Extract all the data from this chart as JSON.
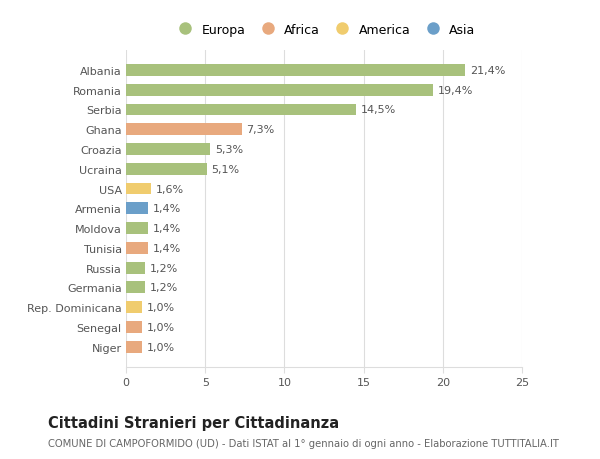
{
  "countries": [
    "Albania",
    "Romania",
    "Serbia",
    "Ghana",
    "Croazia",
    "Ucraina",
    "USA",
    "Armenia",
    "Moldova",
    "Tunisia",
    "Russia",
    "Germania",
    "Rep. Dominicana",
    "Senegal",
    "Niger"
  ],
  "values": [
    21.4,
    19.4,
    14.5,
    7.3,
    5.3,
    5.1,
    1.6,
    1.4,
    1.4,
    1.4,
    1.2,
    1.2,
    1.0,
    1.0,
    1.0
  ],
  "labels": [
    "21,4%",
    "19,4%",
    "14,5%",
    "7,3%",
    "5,3%",
    "5,1%",
    "1,6%",
    "1,4%",
    "1,4%",
    "1,4%",
    "1,2%",
    "1,2%",
    "1,0%",
    "1,0%",
    "1,0%"
  ],
  "categories": [
    "Europa",
    "Africa",
    "America",
    "Asia"
  ],
  "bar_colors": [
    "#a8c17c",
    "#a8c17c",
    "#a8c17c",
    "#e8a97e",
    "#a8c17c",
    "#a8c17c",
    "#f0cc6e",
    "#6b9fc9",
    "#a8c17c",
    "#e8a97e",
    "#a8c17c",
    "#a8c17c",
    "#f0cc6e",
    "#e8a97e",
    "#e8a97e"
  ],
  "legend_colors": [
    "#a8c17c",
    "#e8a97e",
    "#f0cc6e",
    "#6b9fc9"
  ],
  "title": "Cittadini Stranieri per Cittadinanza",
  "subtitle": "COMUNE DI CAMPOFORMIDO (UD) - Dati ISTAT al 1° gennaio di ogni anno - Elaborazione TUTTITALIA.IT",
  "xlim": [
    0,
    25
  ],
  "xticks": [
    0,
    5,
    10,
    15,
    20,
    25
  ],
  "background_color": "#ffffff",
  "grid_color": "#dddddd",
  "label_fontsize": 8.0,
  "tick_fontsize": 8.0,
  "title_fontsize": 10.5,
  "subtitle_fontsize": 7.2,
  "legend_fontsize": 9.0
}
